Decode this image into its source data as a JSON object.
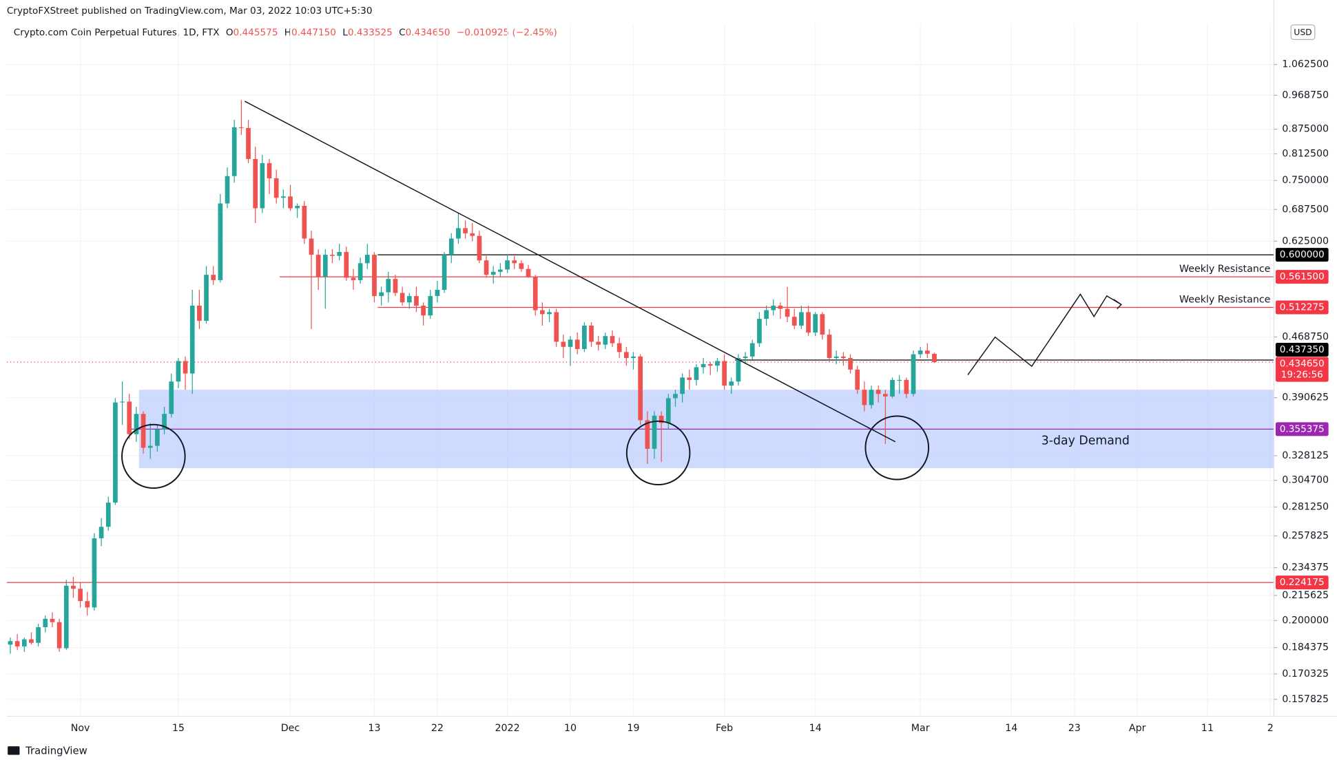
{
  "header": {
    "publisher": "CryptoFXStreet published on TradingView.com, Mar 03, 2022 10:03 UTC+5:30",
    "symbol": "Crypto.com Coin Perpetual Futures, 1D, FTX",
    "o_label": "O",
    "open": "0.445575",
    "h_label": "H",
    "high": "0.447150",
    "l_label": "L",
    "low": "0.433525",
    "c_label": "C",
    "close": "0.434650",
    "change": "−0.010925 (−2.45%)"
  },
  "currency": "USD",
  "footer": "TradingView",
  "chart_data": {
    "type": "candlestick",
    "categories": [
      null,
      null,
      null,
      null,
      null,
      null,
      null,
      null,
      null,
      null,
      "Nov",
      null,
      null,
      null,
      null,
      null,
      null,
      null,
      null,
      null,
      null,
      null,
      null,
      null,
      "15",
      null,
      null,
      null,
      null,
      null,
      null,
      null,
      null,
      null,
      null,
      null,
      null,
      null,
      null,
      null,
      "Dec",
      null,
      null,
      null,
      null,
      null,
      null,
      null,
      null,
      null,
      null,
      null,
      "13",
      null,
      null,
      null,
      null,
      null,
      null,
      null,
      null,
      "22",
      null,
      null,
      null,
      null,
      null,
      null,
      null,
      null,
      null,
      "2022",
      null,
      null,
      null,
      null,
      null,
      null,
      null,
      null,
      "10",
      null,
      null,
      null,
      null,
      null,
      null,
      null,
      null,
      "19",
      null,
      null,
      null,
      null,
      null,
      null,
      null,
      null,
      null,
      null,
      null,
      null,
      "Feb",
      null,
      null,
      null,
      null,
      null,
      null,
      null,
      null,
      null,
      null,
      null,
      null,
      "14",
      null,
      null,
      null,
      null,
      null,
      null,
      null,
      null,
      null,
      null,
      null,
      null,
      null,
      null,
      "Mar",
      null,
      null,
      null,
      null,
      null,
      null,
      null,
      null,
      null,
      null,
      null,
      null,
      "14",
      null,
      null,
      null,
      null,
      null,
      null,
      null,
      null,
      "23",
      null,
      null,
      null,
      null,
      null,
      null,
      null,
      null,
      "Apr",
      null,
      null,
      null,
      null,
      null,
      null,
      null,
      null,
      null,
      "11",
      null,
      null,
      null,
      null,
      null,
      null,
      null,
      null,
      "2"
    ],
    "open": [
      0.186,
      0.188,
      0.185,
      0.189,
      0.187,
      0.196,
      0.201,
      0.199,
      0.184,
      0.222,
      0.22,
      0.212,
      0.208,
      0.256,
      0.265,
      0.285,
      0.385,
      0.386,
      0.35,
      0.372,
      0.336,
      0.338,
      0.355,
      0.372,
      0.41,
      0.436,
      0.42,
      0.515,
      0.492,
      0.565,
      0.556,
      0.7,
      0.76,
      0.88,
      0.878,
      0.8,
      0.69,
      0.79,
      0.755,
      0.712,
      0.715,
      0.69,
      0.695,
      0.63,
      0.6,
      0.562,
      0.6,
      0.598,
      0.605,
      0.56,
      0.556,
      0.585,
      0.6,
      0.53,
      0.536,
      0.558,
      0.535,
      0.52,
      0.53,
      0.515,
      0.5,
      0.53,
      0.54,
      0.6,
      0.63,
      0.65,
      0.64,
      0.635,
      0.59,
      0.565,
      0.57,
      0.574,
      0.59,
      0.585,
      0.575,
      0.562,
      0.508,
      0.502,
      0.505,
      0.462,
      0.455,
      0.465,
      0.452,
      0.485,
      0.462,
      0.458,
      0.47,
      0.46,
      0.448,
      0.44,
      0.442,
      0.365,
      0.335,
      0.37,
      0.362,
      0.39,
      0.395,
      0.415,
      0.412,
      0.428,
      0.432,
      0.43,
      0.436,
      0.405,
      0.41,
      0.44,
      0.442,
      0.46,
      0.495,
      0.508,
      0.515,
      0.51,
      0.498,
      0.485,
      0.505,
      0.475,
      0.502,
      0.472,
      0.44,
      0.442,
      0.44,
      0.425,
      0.4,
      0.382,
      0.4,
      0.395,
      0.392,
      0.412,
      0.412,
      0.395,
      0.445,
      0.45,
      0.445575,
      null,
      null,
      null,
      null,
      null,
      null,
      null,
      null,
      null,
      null,
      null,
      null,
      null,
      null,
      null,
      null,
      null,
      null,
      null,
      null,
      null,
      null,
      null,
      null,
      null,
      null,
      null,
      null,
      null,
      null,
      null,
      null,
      null,
      null,
      null,
      null,
      null,
      null,
      null,
      null,
      null,
      null,
      null,
      null,
      null,
      null,
      null,
      null
    ],
    "high": [
      0.19,
      0.192,
      0.19,
      0.193,
      0.198,
      0.203,
      0.205,
      0.201,
      0.226,
      0.228,
      0.224,
      0.218,
      0.26,
      0.272,
      0.29,
      0.39,
      0.41,
      0.395,
      0.38,
      0.375,
      0.362,
      0.36,
      0.38,
      0.42,
      0.44,
      0.442,
      0.54,
      0.54,
      0.58,
      0.58,
      0.72,
      0.78,
      0.9,
      0.955,
      0.9,
      0.83,
      0.81,
      0.8,
      0.775,
      0.73,
      0.74,
      0.7,
      0.705,
      0.645,
      0.61,
      0.61,
      0.61,
      0.62,
      0.615,
      0.575,
      0.595,
      0.62,
      0.605,
      0.545,
      0.57,
      0.565,
      0.545,
      0.535,
      0.545,
      0.52,
      0.54,
      0.555,
      0.605,
      0.64,
      0.68,
      0.665,
      0.66,
      0.645,
      0.6,
      0.58,
      0.585,
      0.6,
      0.598,
      0.59,
      0.582,
      0.565,
      0.52,
      0.51,
      0.51,
      0.472,
      0.47,
      0.475,
      0.49,
      0.49,
      0.47,
      0.475,
      0.478,
      0.468,
      0.455,
      0.448,
      0.445,
      0.375,
      0.375,
      0.375,
      0.395,
      0.4,
      0.42,
      0.425,
      0.432,
      0.44,
      0.435,
      0.44,
      0.445,
      0.415,
      0.445,
      0.448,
      0.465,
      0.505,
      0.515,
      0.525,
      0.52,
      0.545,
      0.51,
      0.515,
      0.515,
      0.505,
      0.505,
      0.48,
      0.45,
      0.448,
      0.445,
      0.43,
      0.41,
      0.405,
      0.405,
      0.4,
      0.415,
      0.418,
      0.415,
      0.45,
      0.455,
      0.46,
      0.44715,
      null,
      null,
      null,
      null,
      null,
      null,
      null,
      null,
      null,
      null,
      null,
      null,
      null,
      null,
      null,
      null,
      null,
      null,
      null,
      null,
      null,
      null,
      null,
      null,
      null,
      null,
      null,
      null,
      null,
      null,
      null,
      null,
      null,
      null,
      null,
      null,
      null,
      null,
      null,
      null,
      null,
      null,
      null,
      null,
      null,
      null,
      null,
      null
    ],
    "low": [
      0.181,
      0.183,
      0.182,
      0.186,
      0.185,
      0.193,
      0.196,
      0.182,
      0.183,
      0.214,
      0.208,
      0.203,
      0.206,
      0.25,
      0.262,
      0.283,
      0.36,
      0.345,
      0.342,
      0.33,
      0.325,
      0.332,
      0.35,
      0.368,
      0.402,
      0.4,
      0.395,
      0.48,
      0.488,
      0.548,
      0.552,
      0.69,
      0.745,
      0.86,
      0.79,
      0.66,
      0.68,
      0.72,
      0.7,
      0.69,
      0.685,
      0.67,
      0.62,
      0.48,
      0.54,
      0.51,
      0.585,
      0.59,
      0.555,
      0.54,
      0.55,
      0.575,
      0.52,
      0.515,
      0.52,
      0.53,
      0.515,
      0.51,
      0.505,
      0.485,
      0.495,
      0.52,
      0.535,
      0.585,
      0.62,
      0.63,
      0.625,
      0.585,
      0.56,
      0.55,
      0.562,
      0.568,
      0.575,
      0.57,
      0.56,
      0.5,
      0.485,
      0.49,
      0.455,
      0.44,
      0.43,
      0.445,
      0.448,
      0.455,
      0.45,
      0.452,
      0.455,
      0.44,
      0.43,
      0.425,
      0.36,
      0.32,
      0.325,
      0.322,
      0.355,
      0.38,
      0.385,
      0.4,
      0.405,
      0.42,
      0.418,
      0.422,
      0.4,
      0.395,
      0.405,
      0.432,
      0.438,
      0.455,
      0.485,
      0.5,
      0.495,
      0.49,
      0.48,
      0.48,
      0.47,
      0.47,
      0.465,
      0.435,
      0.432,
      0.43,
      0.42,
      0.395,
      0.375,
      0.378,
      0.385,
      0.34,
      0.39,
      0.395,
      0.39,
      0.392,
      0.44,
      0.44,
      0.433525,
      null,
      null,
      null,
      null,
      null,
      null,
      null,
      null,
      null,
      null,
      null,
      null,
      null,
      null,
      null,
      null,
      null,
      null,
      null,
      null,
      null,
      null,
      null,
      null,
      null,
      null,
      null,
      null,
      null,
      null,
      null,
      null,
      null,
      null,
      null,
      null,
      null,
      null,
      null,
      null,
      null,
      null,
      null,
      null,
      null,
      null,
      null,
      null
    ],
    "close": [
      0.188,
      0.185,
      0.189,
      0.187,
      0.196,
      0.201,
      0.199,
      0.184,
      0.222,
      0.22,
      0.212,
      0.208,
      0.256,
      0.265,
      0.285,
      0.385,
      0.386,
      0.35,
      0.372,
      0.336,
      0.338,
      0.355,
      0.372,
      0.41,
      0.436,
      0.42,
      0.515,
      0.492,
      0.565,
      0.556,
      0.7,
      0.76,
      0.88,
      0.878,
      0.8,
      0.69,
      0.79,
      0.755,
      0.712,
      0.715,
      0.69,
      0.695,
      0.63,
      0.6,
      0.562,
      0.6,
      0.598,
      0.605,
      0.56,
      0.556,
      0.585,
      0.6,
      0.53,
      0.536,
      0.558,
      0.535,
      0.52,
      0.53,
      0.515,
      0.5,
      0.53,
      0.54,
      0.6,
      0.63,
      0.65,
      0.64,
      0.635,
      0.59,
      0.565,
      0.57,
      0.574,
      0.59,
      0.585,
      0.575,
      0.562,
      0.508,
      0.502,
      0.505,
      0.462,
      0.455,
      0.465,
      0.452,
      0.485,
      0.462,
      0.458,
      0.47,
      0.46,
      0.448,
      0.44,
      0.442,
      0.365,
      0.335,
      0.37,
      0.362,
      0.39,
      0.395,
      0.415,
      0.412,
      0.428,
      0.432,
      0.43,
      0.436,
      0.405,
      0.41,
      0.44,
      0.442,
      0.46,
      0.495,
      0.508,
      0.515,
      0.51,
      0.498,
      0.485,
      0.505,
      0.475,
      0.502,
      0.472,
      0.44,
      0.442,
      0.44,
      0.425,
      0.4,
      0.382,
      0.4,
      0.395,
      0.392,
      0.412,
      0.412,
      0.395,
      0.445,
      0.45,
      0.4456,
      0.43465,
      null,
      null,
      null,
      null,
      null,
      null,
      null,
      null,
      null,
      null,
      null,
      null,
      null,
      null,
      null,
      null,
      null,
      null,
      null,
      null,
      null,
      null,
      null,
      null,
      null,
      null,
      null,
      null,
      null,
      null,
      null,
      null,
      null,
      null,
      null,
      null,
      null,
      null,
      null,
      null,
      null,
      null,
      null,
      null,
      null,
      null,
      null,
      null
    ],
    "up_color": "#26a69a",
    "down_color": "#ef5350",
    "log_scale": true,
    "grid": true,
    "ylim": [
      0.15,
      1.2
    ],
    "yticks": [
      {
        "value": 1.0625,
        "label": "1.062500"
      },
      {
        "value": 0.96875,
        "label": "0.968750"
      },
      {
        "value": 0.875,
        "label": "0.875000"
      },
      {
        "value": 0.8125,
        "label": "0.812500"
      },
      {
        "value": 0.75,
        "label": "0.750000"
      },
      {
        "value": 0.6875,
        "label": "0.687500"
      },
      {
        "value": 0.625,
        "label": "0.625000"
      },
      {
        "value": 0.46875,
        "label": "0.468750"
      },
      {
        "value": 0.390625,
        "label": "0.390625"
      },
      {
        "value": 0.328125,
        "label": "0.328125"
      },
      {
        "value": 0.3047,
        "label": "0.304700"
      },
      {
        "value": 0.28125,
        "label": "0.281250"
      },
      {
        "value": 0.257825,
        "label": "0.257825"
      },
      {
        "value": 0.234375,
        "label": "0.234375"
      },
      {
        "value": 0.215625,
        "label": "0.215625"
      },
      {
        "value": 0.2,
        "label": "0.200000"
      },
      {
        "value": 0.184375,
        "label": "0.184375"
      },
      {
        "value": 0.170325,
        "label": "0.170325"
      },
      {
        "value": 0.157825,
        "label": "0.157825"
      }
    ],
    "hlines": [
      {
        "value": 0.6,
        "label": "0.600000",
        "color": "#000000"
      },
      {
        "value": 0.5615,
        "label": "0.561500",
        "color": "#f23645",
        "annotation": "Weekly Resistance"
      },
      {
        "value": 0.512275,
        "label": "0.512275",
        "color": "#f23645",
        "annotation": "Weekly Resistance"
      },
      {
        "value": 0.43735,
        "label": "0.437350",
        "color": "#000000"
      },
      {
        "value": 0.355375,
        "label": "0.355375",
        "color": "#9c27b0"
      },
      {
        "value": 0.224175,
        "label": "0.224175",
        "color": "#f23645"
      }
    ],
    "last": {
      "value": 0.43465,
      "label": "0.434650",
      "countdown": "19:26:56",
      "color": "#f23645"
    },
    "zone": {
      "label": "3-day Demand",
      "top": 0.4,
      "bottom": 0.316,
      "color": "#b3c7ff"
    }
  }
}
